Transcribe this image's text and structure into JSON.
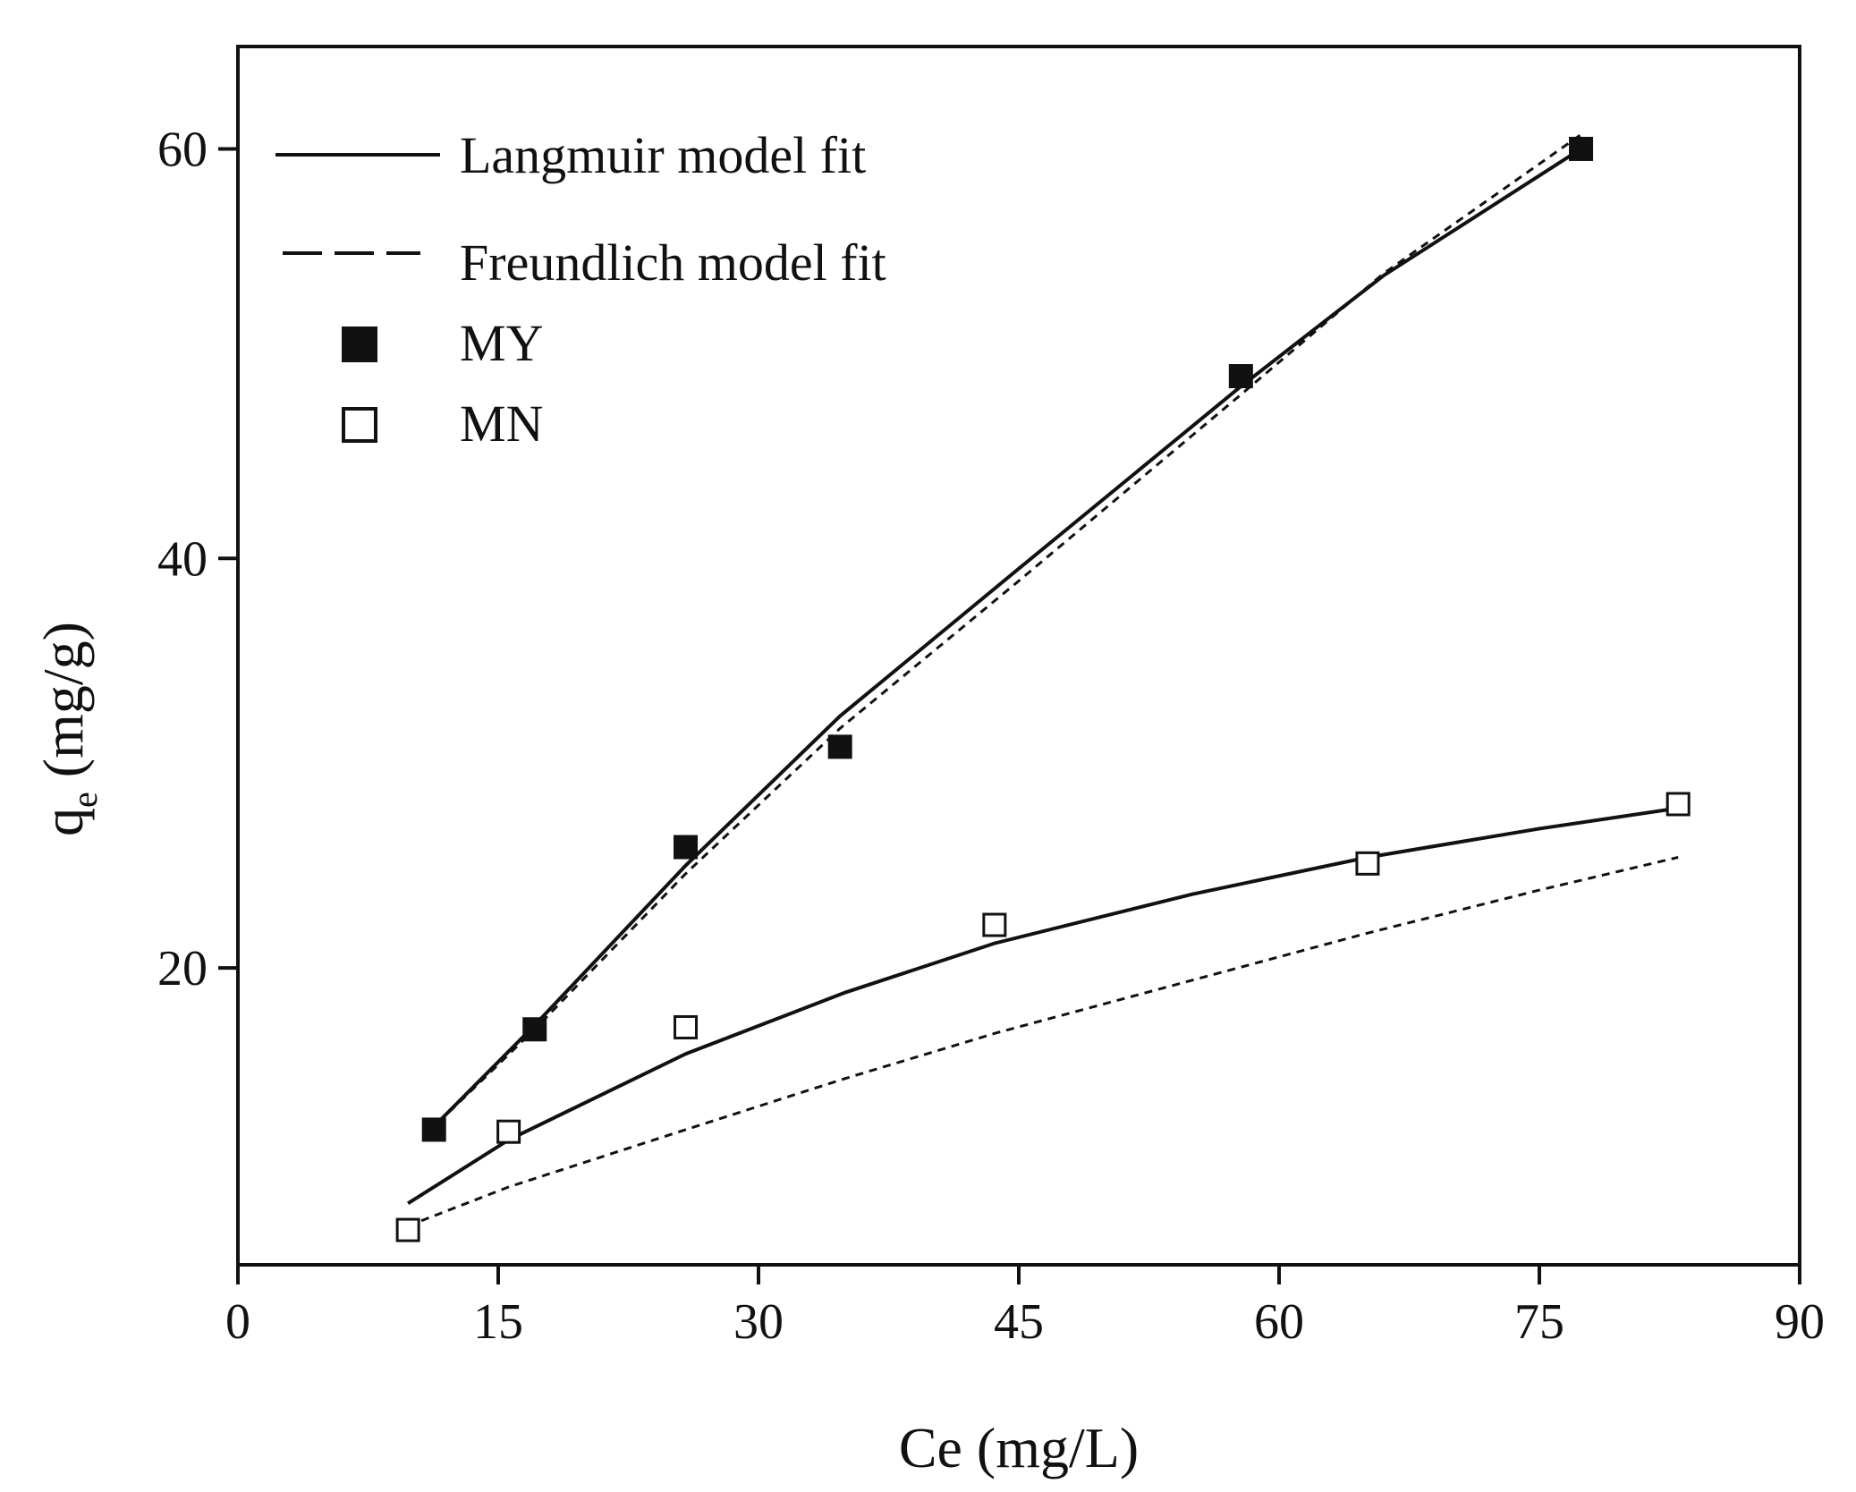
{
  "chart_data": {
    "type": "scatter",
    "xlabel": "Ce (mg/L)",
    "ylabel": "q (mg/g)",
    "ylabel_subscript": "e",
    "xlim": [
      0,
      90
    ],
    "ylim": [
      5.5,
      65
    ],
    "xticks": [
      0,
      15,
      30,
      45,
      60,
      75,
      90
    ],
    "yticks": [
      20,
      40,
      60
    ],
    "grid": false,
    "legend_position": "top-left",
    "legend": [
      {
        "label": "Langmuir model fit",
        "kind": "solid-line"
      },
      {
        "label": "Freundlich model fit",
        "kind": "dashed-line"
      },
      {
        "label": "MY",
        "kind": "filled-square"
      },
      {
        "label": "MN",
        "kind": "open-square"
      }
    ],
    "series": [
      {
        "name": "MY",
        "marker": "filled-square",
        "x": [
          11.3,
          17.1,
          25.8,
          34.7,
          57.8,
          77.4
        ],
        "y": [
          12.1,
          17.0,
          25.9,
          30.8,
          48.9,
          60.0
        ]
      },
      {
        "name": "MN",
        "marker": "open-square",
        "x": [
          9.8,
          15.6,
          25.8,
          43.6,
          65.1,
          83.0
        ],
        "y": [
          7.2,
          12.0,
          17.1,
          22.1,
          25.1,
          28.0
        ]
      }
    ],
    "fits": [
      {
        "name": "Langmuir model fit",
        "for": "MY",
        "style": "solid",
        "x": [
          11.0,
          17.1,
          25.8,
          34.7,
          45.0,
          57.8,
          66.0,
          77.4
        ],
        "y": [
          12.0,
          17.2,
          25.0,
          32.3,
          39.5,
          48.4,
          53.8,
          60.0
        ]
      },
      {
        "name": "Freundlich model fit",
        "for": "MY",
        "style": "dashed",
        "x": [
          11.0,
          17.1,
          25.8,
          34.7,
          45.0,
          57.8,
          66.0,
          77.4
        ],
        "y": [
          12.0,
          17.0,
          24.6,
          31.7,
          38.9,
          48.0,
          53.9,
          60.7
        ]
      },
      {
        "name": "Langmuir model fit",
        "for": "MN",
        "style": "solid",
        "x": [
          9.8,
          15.6,
          25.8,
          35.0,
          43.6,
          55.0,
          65.1,
          75.0,
          83.0
        ],
        "y": [
          8.5,
          11.6,
          15.8,
          18.8,
          21.2,
          23.6,
          25.4,
          26.8,
          27.8
        ]
      },
      {
        "name": "Freundlich model fit",
        "for": "MN",
        "style": "dashed",
        "x": [
          9.8,
          15.6,
          25.8,
          35.0,
          43.6,
          55.0,
          65.1,
          75.0,
          83.0
        ],
        "y": [
          7.4,
          9.3,
          12.1,
          14.6,
          16.8,
          19.4,
          21.7,
          23.8,
          25.4
        ]
      }
    ]
  }
}
